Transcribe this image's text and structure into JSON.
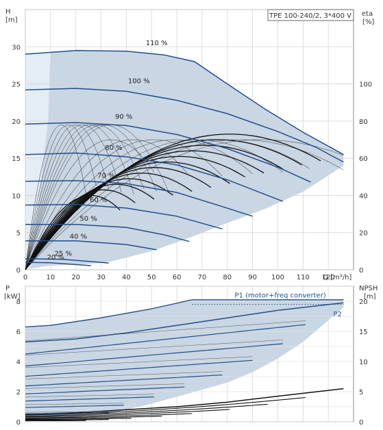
{
  "chart_data": [
    {
      "type": "line",
      "title": "TPE 100-240/2, 3*400 V",
      "left_axis": {
        "name": "H",
        "unit": "[m]",
        "ticks": [
          0,
          5,
          10,
          15,
          20,
          25,
          30
        ],
        "range": [
          0,
          35
        ]
      },
      "right_axis": {
        "name": "eta",
        "unit": "[%]",
        "ticks": [
          0,
          20,
          40,
          60,
          80,
          100
        ],
        "range": [
          0,
          140
        ]
      },
      "x_axis": {
        "name": "Q",
        "unit": "[m³/h]",
        "ticks": [
          0,
          10,
          20,
          30,
          40,
          50,
          60,
          70,
          80,
          90,
          100,
          110,
          120
        ],
        "range": [
          0,
          130
        ]
      },
      "grid": true,
      "series": [
        {
          "name": "110 %",
          "x": [
            0,
            20,
            40,
            55,
            67,
            80,
            95,
            110,
            126
          ],
          "y": [
            29,
            29.5,
            29.4,
            28.9,
            28,
            25,
            21.6,
            18.5,
            15.5
          ]
        },
        {
          "name": "100 %",
          "x": [
            0,
            20,
            40,
            60,
            80,
            100,
            115,
            126
          ],
          "y": [
            24.2,
            24.4,
            24,
            22.8,
            21,
            18.6,
            16.5,
            14.5
          ]
        },
        {
          "name": "90 %",
          "x": [
            0,
            20,
            40,
            60,
            80,
            100,
            113
          ],
          "y": [
            19.6,
            19.8,
            19.4,
            18.2,
            16.3,
            13.8,
            11.8
          ]
        },
        {
          "name": "80 %",
          "x": [
            0,
            20,
            40,
            60,
            80,
            102
          ],
          "y": [
            15.5,
            15.7,
            15.2,
            14.1,
            12.1,
            9.2
          ]
        },
        {
          "name": "70 %",
          "x": [
            0,
            20,
            40,
            60,
            78,
            90
          ],
          "y": [
            11.9,
            12,
            11.6,
            10.4,
            8.5,
            7.2
          ]
        },
        {
          "name": "60 %",
          "x": [
            0,
            20,
            40,
            60,
            78
          ],
          "y": [
            8.7,
            8.8,
            8.3,
            7.2,
            5.5
          ]
        },
        {
          "name": "50 %",
          "x": [
            0,
            20,
            40,
            55,
            65
          ],
          "y": [
            6.1,
            6.1,
            5.7,
            4.7,
            3.8
          ]
        },
        {
          "name": "40 %",
          "x": [
            0,
            20,
            40,
            52
          ],
          "y": [
            3.9,
            3.9,
            3.4,
            2.7
          ]
        },
        {
          "name": "25 %",
          "x": [
            0,
            15,
            30,
            33
          ],
          "y": [
            1.5,
            1.4,
            1.0,
            0.9
          ]
        },
        {
          "name": "20 %",
          "x": [
            0,
            10,
            20,
            26
          ],
          "y": [
            1.0,
            0.95,
            0.7,
            0.55
          ]
        }
      ],
      "eta_max_pct": 70,
      "annotations": [
        "110 %",
        "100 %",
        "90 %",
        "80 %",
        "70 %",
        "60 %",
        "50 %",
        "40 %",
        "25 %",
        "20 %"
      ]
    },
    {
      "type": "line",
      "left_axis": {
        "name": "P",
        "unit": "[kW]",
        "ticks": [
          0,
          2,
          4,
          6,
          8
        ],
        "range": [
          0,
          9
        ]
      },
      "right_axis": {
        "name": "NPSH",
        "unit": "[m]",
        "ticks": [
          0,
          5,
          10,
          15,
          20
        ],
        "range": [
          0,
          22.5
        ]
      },
      "x_axis": {
        "range": [
          0,
          130
        ]
      },
      "grid": true,
      "series": [
        {
          "name": "P1 (motor+freq converter)",
          "x": [
            0,
            10,
            30,
            50,
            66,
            126
          ],
          "y": [
            6.3,
            6.4,
            6.9,
            7.5,
            8.1,
            8.1
          ]
        },
        {
          "name": "P2",
          "x": [
            0,
            20,
            40,
            60,
            80,
            100,
            126
          ],
          "y": [
            5.3,
            5.5,
            5.9,
            6.4,
            6.9,
            7.4,
            7.9
          ]
        },
        {
          "name": "",
          "x": [
            0,
            20,
            40,
            60,
            80,
            100,
            126
          ],
          "y": [
            0.5,
            0.6,
            0.8,
            1.0,
            1.3,
            1.7,
            2.2
          ]
        }
      ],
      "annotations": [
        "P1 (motor+freq converter)",
        "P2"
      ]
    }
  ]
}
